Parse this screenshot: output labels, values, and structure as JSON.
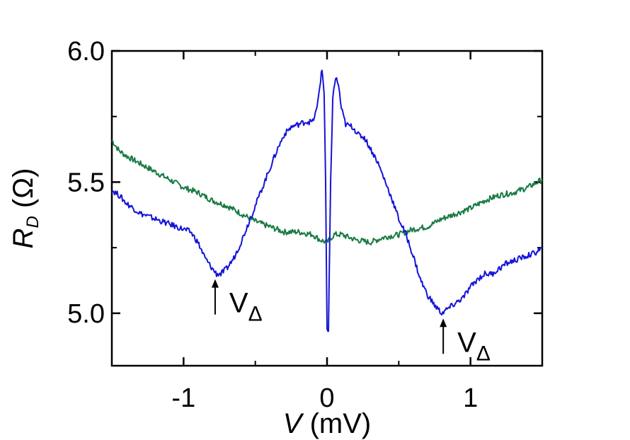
{
  "chart_data": {
    "type": "line",
    "xlabel_var": "V",
    "xlabel_unit": " (mV)",
    "ylabel_var": "R",
    "ylabel_sub": "D",
    "ylabel_unit": " (Ω)",
    "xlim": [
      -1.5,
      1.5
    ],
    "ylim": [
      4.8,
      6.0
    ],
    "xticks": [
      {
        "value": -1,
        "label": "-1"
      },
      {
        "value": 0,
        "label": "0"
      },
      {
        "value": 1,
        "label": "1"
      }
    ],
    "xminor": [
      -0.5,
      0.5
    ],
    "yticks": [
      {
        "value": 5.0,
        "label": "5.0"
      },
      {
        "value": 5.5,
        "label": "5.5"
      },
      {
        "value": 6.0,
        "label": "6.0"
      }
    ],
    "yminor": [
      5.25,
      5.75
    ],
    "grid": false,
    "series": [
      {
        "color": "#1414d8",
        "points": [
          [
            -1.5,
            5.47
          ],
          [
            -1.45,
            5.45
          ],
          [
            -1.4,
            5.42
          ],
          [
            -1.35,
            5.4
          ],
          [
            -1.3,
            5.38
          ],
          [
            -1.25,
            5.37
          ],
          [
            -1.2,
            5.36
          ],
          [
            -1.15,
            5.35
          ],
          [
            -1.1,
            5.34
          ],
          [
            -1.05,
            5.33
          ],
          [
            -1.0,
            5.32
          ],
          [
            -0.95,
            5.31
          ],
          [
            -0.9,
            5.27
          ],
          [
            -0.85,
            5.21
          ],
          [
            -0.8,
            5.17
          ],
          [
            -0.77,
            5.15
          ],
          [
            -0.74,
            5.15
          ],
          [
            -0.7,
            5.17
          ],
          [
            -0.65,
            5.21
          ],
          [
            -0.6,
            5.27
          ],
          [
            -0.55,
            5.34
          ],
          [
            -0.5,
            5.41
          ],
          [
            -0.45,
            5.48
          ],
          [
            -0.4,
            5.55
          ],
          [
            -0.35,
            5.62
          ],
          [
            -0.3,
            5.68
          ],
          [
            -0.25,
            5.71
          ],
          [
            -0.2,
            5.72
          ],
          [
            -0.15,
            5.73
          ],
          [
            -0.1,
            5.73
          ],
          [
            -0.07,
            5.78
          ],
          [
            -0.05,
            5.87
          ],
          [
            -0.035,
            5.93
          ],
          [
            -0.02,
            5.84
          ],
          [
            -0.01,
            5.5
          ],
          [
            0.0,
            4.93
          ],
          [
            0.01,
            4.93
          ],
          [
            0.025,
            5.5
          ],
          [
            0.04,
            5.82
          ],
          [
            0.06,
            5.9
          ],
          [
            0.08,
            5.87
          ],
          [
            0.1,
            5.78
          ],
          [
            0.13,
            5.72
          ],
          [
            0.18,
            5.71
          ],
          [
            0.22,
            5.68
          ],
          [
            0.26,
            5.67
          ],
          [
            0.3,
            5.63
          ],
          [
            0.35,
            5.58
          ],
          [
            0.4,
            5.51
          ],
          [
            0.45,
            5.44
          ],
          [
            0.5,
            5.36
          ],
          [
            0.55,
            5.3
          ],
          [
            0.6,
            5.22
          ],
          [
            0.65,
            5.13
          ],
          [
            0.7,
            5.07
          ],
          [
            0.75,
            5.03
          ],
          [
            0.8,
            5.0
          ],
          [
            0.85,
            5.02
          ],
          [
            0.9,
            5.04
          ],
          [
            0.95,
            5.06
          ],
          [
            1.0,
            5.1
          ],
          [
            1.05,
            5.13
          ],
          [
            1.1,
            5.15
          ],
          [
            1.15,
            5.15
          ],
          [
            1.2,
            5.17
          ],
          [
            1.25,
            5.19
          ],
          [
            1.3,
            5.2
          ],
          [
            1.35,
            5.21
          ],
          [
            1.4,
            5.22
          ],
          [
            1.45,
            5.23
          ],
          [
            1.5,
            5.25
          ]
        ]
      },
      {
        "color": "#1a7a45",
        "points": [
          [
            -1.5,
            5.66
          ],
          [
            -1.45,
            5.62
          ],
          [
            -1.4,
            5.6
          ],
          [
            -1.3,
            5.57
          ],
          [
            -1.2,
            5.54
          ],
          [
            -1.1,
            5.51
          ],
          [
            -1.0,
            5.48
          ],
          [
            -0.9,
            5.46
          ],
          [
            -0.8,
            5.43
          ],
          [
            -0.7,
            5.41
          ],
          [
            -0.6,
            5.38
          ],
          [
            -0.5,
            5.35
          ],
          [
            -0.4,
            5.33
          ],
          [
            -0.3,
            5.31
          ],
          [
            -0.2,
            5.31
          ],
          [
            -0.1,
            5.3
          ],
          [
            -0.05,
            5.28
          ],
          [
            0.0,
            5.27
          ],
          [
            0.05,
            5.3
          ],
          [
            0.1,
            5.3
          ],
          [
            0.2,
            5.28
          ],
          [
            0.3,
            5.27
          ],
          [
            0.4,
            5.29
          ],
          [
            0.5,
            5.3
          ],
          [
            0.6,
            5.32
          ],
          [
            0.7,
            5.33
          ],
          [
            0.8,
            5.36
          ],
          [
            0.9,
            5.38
          ],
          [
            1.0,
            5.4
          ],
          [
            1.1,
            5.43
          ],
          [
            1.2,
            5.45
          ],
          [
            1.3,
            5.46
          ],
          [
            1.4,
            5.48
          ],
          [
            1.5,
            5.51
          ]
        ]
      }
    ],
    "annotations": [
      {
        "text": "V",
        "sub": "Δ",
        "x": -0.78,
        "y": 5.13
      },
      {
        "text": "V",
        "sub": "Δ",
        "x": 0.81,
        "y": 4.98
      }
    ]
  }
}
